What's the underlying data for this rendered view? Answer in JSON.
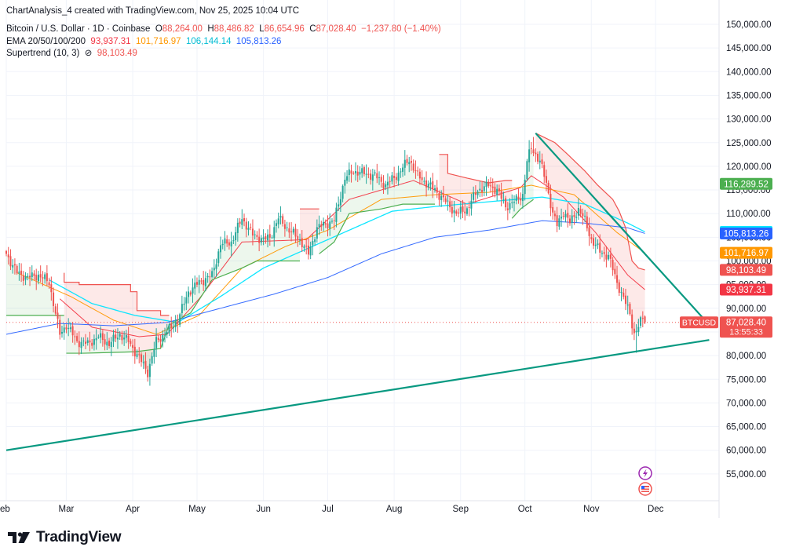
{
  "header": {
    "creator": "ChartAnalysis_4 created with TradingView.com, Nov 25, 2025 10:04 UTC",
    "symbol_title": "Bitcoin / U.S. Dollar · 1D · Coinbase",
    "ohlc": {
      "o_label": "O",
      "o_value": "88,264.00",
      "h_label": "H",
      "h_value": "88,486.82",
      "l_label": "L",
      "l_value": "86,654.96",
      "c_label": "C",
      "c_value": "87,028.40",
      "change": "−1,237.80 (−1.40%)"
    },
    "ema_label": "EMA 20/50/100/200",
    "ema_values": [
      "93,937.31",
      "101,716.97",
      "106,144.14",
      "105,813.26"
    ],
    "supertrend_label": "Supertrend (10, 3)",
    "supertrend_symbol": "⊘",
    "supertrend_value": "98,103.49"
  },
  "brand": {
    "name": "TradingView"
  },
  "colors": {
    "up": "#26a69a",
    "down": "#ef5350",
    "ema20": "#f23645",
    "ema50": "#ff9800",
    "ema100": "#00e5ff",
    "ema200": "#2962ff",
    "trendline": "#089981",
    "st_green": "#4caf50",
    "st_red": "#ef5350"
  },
  "chart_data": {
    "type": "candlestick",
    "symbol": "BTCUSD",
    "timeframe": "1D",
    "ylim": [
      50000,
      152000
    ],
    "y_ticks": [
      "150,000.00",
      "145,000.00",
      "140,000.00",
      "135,000.00",
      "130,000.00",
      "125,000.00",
      "120,000.00",
      "115,000.00",
      "110,000.00",
      "105,000.00",
      "100,000.00",
      "95,000.00",
      "90,000.00",
      "85,000.00",
      "80,000.00",
      "75,000.00",
      "70,000.00",
      "65,000.00",
      "60,000.00",
      "55,000.00"
    ],
    "y_tick_values": [
      150000,
      145000,
      140000,
      135000,
      130000,
      125000,
      120000,
      115000,
      110000,
      105000,
      100000,
      95000,
      90000,
      85000,
      80000,
      75000,
      70000,
      65000,
      60000,
      55000
    ],
    "x_ticks": [
      {
        "label": "eb",
        "day": 0
      },
      {
        "label": "Mar",
        "day": 28
      },
      {
        "label": "Apr",
        "day": 59
      },
      {
        "label": "May",
        "day": 89
      },
      {
        "label": "Jun",
        "day": 120
      },
      {
        "label": "Jul",
        "day": 150
      },
      {
        "label": "Aug",
        "day": 181
      },
      {
        "label": "Sep",
        "day": 212
      },
      {
        "label": "Oct",
        "day": 242
      },
      {
        "label": "Nov",
        "day": 273
      },
      {
        "label": "Dec",
        "day": 303
      }
    ],
    "day_range": [
      0,
      332
    ],
    "last_day": 298,
    "close_anchors": [
      [
        0,
        101500
      ],
      [
        5,
        97500
      ],
      [
        10,
        96500
      ],
      [
        15,
        97000
      ],
      [
        20,
        95500
      ],
      [
        25,
        84500
      ],
      [
        28,
        86500
      ],
      [
        33,
        83000
      ],
      [
        38,
        82500
      ],
      [
        43,
        84000
      ],
      [
        48,
        82500
      ],
      [
        53,
        84500
      ],
      [
        57,
        83000
      ],
      [
        62,
        79500
      ],
      [
        66,
        76500
      ],
      [
        70,
        83000
      ],
      [
        75,
        85000
      ],
      [
        80,
        87500
      ],
      [
        85,
        93500
      ],
      [
        90,
        95500
      ],
      [
        96,
        97000
      ],
      [
        100,
        103500
      ],
      [
        105,
        104000
      ],
      [
        110,
        109000
      ],
      [
        115,
        105500
      ],
      [
        120,
        104500
      ],
      [
        123,
        105000
      ],
      [
        127,
        109000
      ],
      [
        132,
        106500
      ],
      [
        137,
        104500
      ],
      [
        141,
        101500
      ],
      [
        145,
        107000
      ],
      [
        149,
        107800
      ],
      [
        153,
        108500
      ],
      [
        158,
        117500
      ],
      [
        162,
        119000
      ],
      [
        167,
        118500
      ],
      [
        172,
        118000
      ],
      [
        177,
        116000
      ],
      [
        183,
        118500
      ],
      [
        188,
        121500
      ],
      [
        192,
        118000
      ],
      [
        196,
        116500
      ],
      [
        200,
        115000
      ],
      [
        205,
        112500
      ],
      [
        210,
        110000
      ],
      [
        215,
        111000
      ],
      [
        220,
        115000
      ],
      [
        225,
        116000
      ],
      [
        229,
        115000
      ],
      [
        233,
        111500
      ],
      [
        237,
        112500
      ],
      [
        241,
        114000
      ],
      [
        243,
        121000
      ],
      [
        245,
        124000
      ],
      [
        249,
        121000
      ],
      [
        252,
        116500
      ],
      [
        255,
        110000
      ],
      [
        257,
        107500
      ],
      [
        260,
        110500
      ],
      [
        263,
        108000
      ],
      [
        267,
        111000
      ],
      [
        270,
        108500
      ],
      [
        273,
        104500
      ],
      [
        277,
        102000
      ],
      [
        281,
        101000
      ],
      [
        285,
        95500
      ],
      [
        288,
        92000
      ],
      [
        291,
        89000
      ],
      [
        293,
        84500
      ],
      [
        295,
        86000
      ],
      [
        297,
        88200
      ],
      [
        298,
        87028.4
      ]
    ],
    "ema_anchors": {
      "ema20": [
        [
          25,
          92000
        ],
        [
          40,
          86000
        ],
        [
          62,
          84000
        ],
        [
          75,
          84500
        ],
        [
          90,
          92000
        ],
        [
          110,
          104000
        ],
        [
          140,
          104500
        ],
        [
          160,
          113000
        ],
        [
          190,
          117000
        ],
        [
          215,
          112000
        ],
        [
          240,
          115500
        ],
        [
          245,
          118000
        ],
        [
          260,
          113500
        ],
        [
          275,
          106000
        ],
        [
          290,
          97000
        ],
        [
          298,
          93937.31
        ]
      ],
      "ema50": [
        [
          5,
          97500
        ],
        [
          30,
          92500
        ],
        [
          50,
          87500
        ],
        [
          70,
          84500
        ],
        [
          90,
          88500
        ],
        [
          110,
          98500
        ],
        [
          130,
          103000
        ],
        [
          150,
          106500
        ],
        [
          175,
          113000
        ],
        [
          200,
          114000
        ],
        [
          225,
          114500
        ],
        [
          245,
          116000
        ],
        [
          265,
          114000
        ],
        [
          285,
          106000
        ],
        [
          298,
          101716.97
        ]
      ],
      "ema100": [
        [
          20,
          96000
        ],
        [
          40,
          91000
        ],
        [
          60,
          88500
        ],
        [
          80,
          87000
        ],
        [
          100,
          92500
        ],
        [
          120,
          98500
        ],
        [
          140,
          102500
        ],
        [
          160,
          106500
        ],
        [
          180,
          110500
        ],
        [
          200,
          111500
        ],
        [
          225,
          112500
        ],
        [
          250,
          113500
        ],
        [
          270,
          112000
        ],
        [
          290,
          108000
        ],
        [
          298,
          106144.14
        ]
      ],
      "ema200": [
        [
          0,
          84500
        ],
        [
          25,
          86800
        ],
        [
          50,
          86300
        ],
        [
          75,
          87000
        ],
        [
          100,
          90000
        ],
        [
          125,
          93000
        ],
        [
          150,
          96500
        ],
        [
          175,
          101500
        ],
        [
          200,
          105000
        ],
        [
          225,
          106500
        ],
        [
          250,
          108500
        ],
        [
          270,
          108000
        ],
        [
          290,
          107000
        ],
        [
          298,
          105813.26
        ]
      ]
    },
    "supertrend_segments": [
      {
        "trend": "up",
        "points": [
          [
            0,
            88500
          ],
          [
            27,
            88500
          ]
        ]
      },
      {
        "trend": "down",
        "points": [
          [
            27,
            97500
          ],
          [
            27,
            95500
          ],
          [
            34,
            95500
          ],
          [
            34,
            95000
          ],
          [
            58,
            95000
          ],
          [
            58,
            93500
          ],
          [
            61,
            93500
          ],
          [
            61,
            89500
          ],
          [
            72,
            89500
          ],
          [
            72,
            88500
          ],
          [
            76,
            88500
          ]
        ]
      },
      {
        "trend": "up",
        "points": [
          [
            28,
            80500
          ],
          [
            36,
            80500
          ],
          [
            60,
            80800
          ],
          [
            72,
            81500
          ],
          [
            76,
            86500
          ],
          [
            86,
            89000
          ],
          [
            96,
            96000
          ],
          [
            110,
            98500
          ],
          [
            117,
            100000
          ],
          [
            137,
            100000
          ]
        ]
      },
      {
        "trend": "down",
        "points": [
          [
            137,
            111000
          ],
          [
            146,
            111000
          ]
        ]
      },
      {
        "trend": "up",
        "points": [
          [
            146,
            101500
          ],
          [
            153,
            104000
          ],
          [
            160,
            110000
          ],
          [
            175,
            111000
          ],
          [
            185,
            112000
          ],
          [
            200,
            112000
          ]
        ]
      },
      {
        "trend": "down",
        "points": [
          [
            202,
            122500
          ],
          [
            206,
            122500
          ],
          [
            206,
            118500
          ],
          [
            215,
            117500
          ],
          [
            225,
            116500
          ],
          [
            233,
            117000
          ],
          [
            236,
            117000
          ]
        ]
      },
      {
        "trend": "up",
        "points": [
          [
            236,
            109000
          ],
          [
            240,
            111000
          ],
          [
            246,
            113000
          ]
        ]
      },
      {
        "trend": "down",
        "points": [
          [
            247,
            127000
          ],
          [
            256,
            125000
          ],
          [
            262,
            122500
          ],
          [
            270,
            119000
          ],
          [
            276,
            116000
          ],
          [
            283,
            113000
          ],
          [
            286,
            110500
          ],
          [
            289,
            107000
          ],
          [
            292,
            100000
          ],
          [
            295,
            98500
          ],
          [
            298,
            98103.49
          ]
        ]
      }
    ],
    "trendlines": [
      {
        "name": "descending-resistance",
        "points": [
          [
            247,
            127000
          ],
          [
            328,
            86500
          ]
        ]
      },
      {
        "name": "ascending-support",
        "points": [
          [
            0,
            60000
          ],
          [
            328,
            83300
          ]
        ]
      }
    ],
    "price_labels": [
      {
        "text": "116,289.52",
        "value": 116289.52,
        "color": "#4caf50"
      },
      {
        "text": "106,144.14",
        "value": 106144.14,
        "color": "#00e5ff",
        "text_color": "#131722"
      },
      {
        "text": "105,813.26",
        "value": 105813.26,
        "color": "#2962ff"
      },
      {
        "text": "101,716.97",
        "value": 101716.97,
        "color": "#ff9800"
      },
      {
        "text": "98,103.49",
        "value": 98103.49,
        "color": "#ef5350"
      },
      {
        "text": "93,937.31",
        "value": 93937.31,
        "color": "#f23645"
      }
    ],
    "current_price": {
      "symbol_tag": "BTCUSD",
      "text": "87,028.40",
      "countdown": "13:55:33",
      "value": 87028.4,
      "color": "#ef5350"
    }
  }
}
